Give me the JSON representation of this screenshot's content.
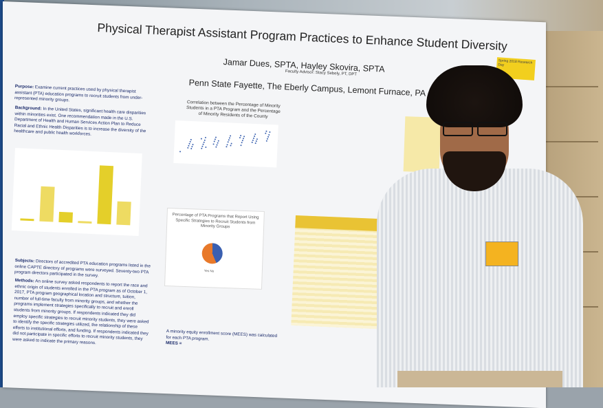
{
  "poster": {
    "title": "Physical Therapist Assistant Program Practices to Enhance Student Diversity",
    "authors": "Jamar Dues, SPTA, Hayley Skovira, SPTA",
    "advisor": "Faculty Advisor: Stacy Sebely, PT, DPT",
    "campus": "Penn State Fayette, The Eberly Campus, Lemont Furnace, PA",
    "purpose_label": "Purpose:",
    "purpose_text": "Examine current practices used by physical therapist assistant (PTA) education programs to recruit students from under-represented minority groups.",
    "background_label": "Background:",
    "background_text": "In the United States, significant health care disparities within minorities exist. One recommendation made in the U.S. Department of Health and Human Services Action Plan to Reduce Racial and Ethnic Health Disparities is to increase the diversity of the healthcare and public health workforces.",
    "scatter_title": "Correlation between the Percentage of Minority Students in a PTA Program and the Percentage of Minority Residents of the County",
    "pie_title": "Percentage of PTA Programs that Report Using Specific Strategies to Recruit Students from Minority Groups",
    "pie_legend": "Yes  No",
    "subjects_label": "Subjects:",
    "subjects_text": "Directors of accredited PTA education programs listed in the online CAPTE directory of programs were surveyed. Seventy-two PTA program directors participated in the survey.",
    "methods_label": "Methods:",
    "methods_text": "An online survey asked respondents to report the race and ethnic origin of students enrolled in the PTA program as of October 1, 2017, PTA program geographical location and structure, tuition, number of full-time faculty from minority groups, and whether the programs implement strategies specifically to recruit and enroll students from minority groups. If respondents indicated they did employ specific strategies to recruit minority students, they were asked to identify the specific strategies utilized, the relationship of these efforts to institutional efforts, and funding. If respondents indicated they did not participate in specific efforts to recruit minority students, they were asked to indicate the primary reasons.",
    "mees_text": "A minority equity enrollment score (MEES) was calculated for each PTA program.",
    "mees_label": "MEES =",
    "sticky_text": "Spring 2018 Research Day"
  },
  "bar_chart": {
    "values": [
      3,
      60,
      18,
      3,
      100,
      40
    ],
    "bar_color": "#e4cf2a"
  }
}
